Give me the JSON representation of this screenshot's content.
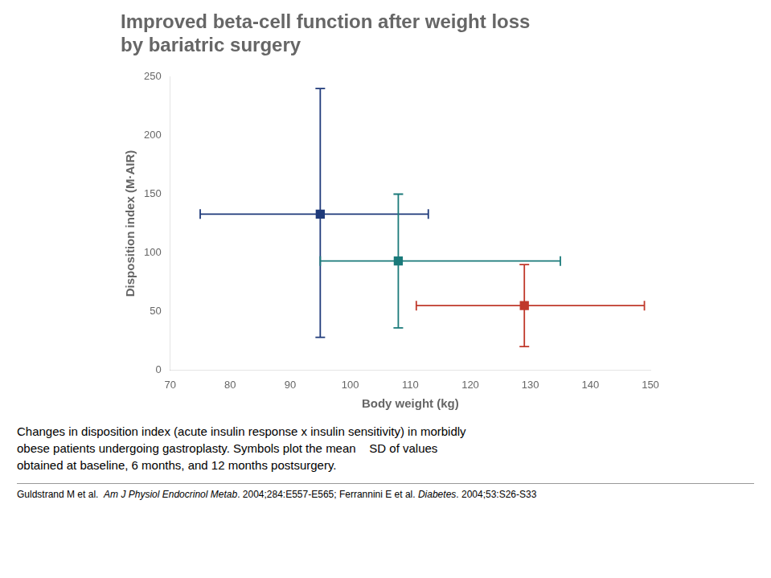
{
  "chart_data": {
    "type": "scatter",
    "title": [
      "Improved beta-cell function after weight loss",
      "by bariatric surgery"
    ],
    "x_label": "Body weight (kg)",
    "y_label": "Disposition index (M·AIR)",
    "x": [
      95,
      108,
      129
    ],
    "values": [
      133,
      93,
      55
    ],
    "x_error_minus": [
      20,
      13,
      18
    ],
    "x_error_plus": [
      18,
      27,
      20
    ],
    "y_error_minus": [
      105,
      57,
      35
    ],
    "y_error_plus": [
      107,
      57,
      35
    ],
    "colors": [
      "#1F3A7A",
      "#1A7A7A",
      "#C0392B"
    ],
    "marker": "square",
    "xlim": [
      70,
      150
    ],
    "ylim": [
      0,
      250
    ],
    "xticks": [
      70,
      80,
      90,
      100,
      110,
      120,
      130,
      140,
      150
    ],
    "yticks": [
      0,
      50,
      100,
      150,
      200,
      250
    ],
    "grid": false,
    "caption": [
      "Changes in disposition index (acute insulin response x insulin sensitivity) in morbidly",
      "obese patients undergoing gastroplasty. Symbols plot the mean    SD of values",
      "obtained at baseline, 6 months, and 12 months postsurgery."
    ],
    "footer": [
      "Guldstrand M et al.  ",
      "Am J Physiol Endocrinol Metab",
      ". 2004;284:E557-E565; Ferrannini E et al. ",
      "Diabetes",
      ". 2004;53:S26-S33"
    ]
  }
}
